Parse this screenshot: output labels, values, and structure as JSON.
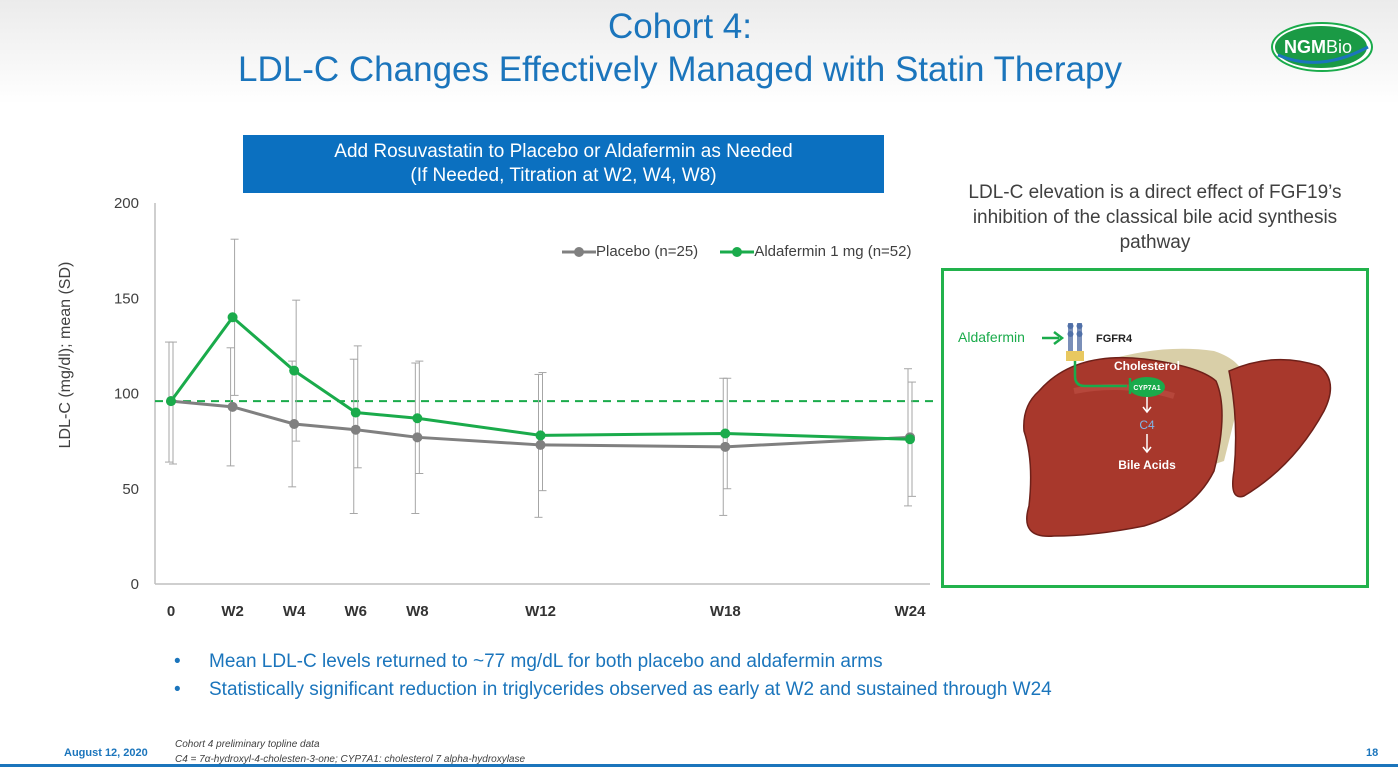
{
  "header": {
    "title_line1": "Cohort 4:",
    "title_line2": "LDL-C Changes Effectively Managed with Statin Therapy",
    "logo_text_bold": "NGM",
    "logo_text_light": "Bio"
  },
  "banner": {
    "line1": "Add Rosuvastatin to Placebo or Aldafermin as Needed",
    "line2": "(If Needed, Titration at W2, W4, W8)"
  },
  "chart_data": {
    "type": "line",
    "ylabel": "LDL-C (mg/dl); mean (SD)",
    "xlabel": "",
    "ylim": [
      0,
      200
    ],
    "yticks": [
      0,
      50,
      100,
      150,
      200
    ],
    "x_weeks": [
      0,
      2,
      4,
      6,
      8,
      12,
      18,
      24
    ],
    "categories": [
      "0",
      "W2",
      "W4",
      "W6",
      "W8",
      "W12",
      "W18",
      "W24"
    ],
    "series": [
      {
        "name": "Placebo (n=25)",
        "color": "#808080",
        "values": [
          96,
          93,
          84,
          81,
          77,
          73,
          72,
          77
        ],
        "sd_upper": [
          127,
          124,
          117,
          118,
          116,
          110,
          108,
          113
        ],
        "sd_lower": [
          64,
          62,
          51,
          37,
          37,
          35,
          36,
          41
        ]
      },
      {
        "name": "Aldafermin 1 mg (n=52)",
        "color": "#1aab4b",
        "values": [
          96,
          140,
          112,
          90,
          87,
          78,
          79,
          76
        ],
        "sd_upper": [
          127,
          181,
          149,
          125,
          117,
          111,
          108,
          106
        ],
        "sd_lower": [
          63,
          99,
          75,
          61,
          58,
          49,
          50,
          46
        ]
      }
    ],
    "reference_line": {
      "y": 96,
      "style": "dashed",
      "color": "#1aab4b"
    },
    "grid": false,
    "legend_position": "top-right"
  },
  "description": "LDL-C elevation is a direct effect of FGF19’s inhibition of the classical bile acid synthesis pathway",
  "diagram": {
    "drug_label": "Aldafermin",
    "receptor_label": "FGFR4",
    "cholesterol_label": "Cholesterol",
    "enzyme_label": "CYP7A1",
    "intermediate_label": "C4",
    "product_label": "Bile Acids"
  },
  "bullets": [
    "Mean LDL-C levels returned to ~77 mg/dL for both placebo and aldafermin arms",
    "Statistically significant reduction in triglycerides observed as early at W2 and sustained through W24"
  ],
  "footer": {
    "date": "August 12, 2020",
    "note1": "Cohort 4 preliminary topline data",
    "note2": "C4 = 7α-hydroxyl-4-cholesten-3-one; CYP7A1:  cholesterol 7 alpha-hydroxylase",
    "page": "18"
  }
}
